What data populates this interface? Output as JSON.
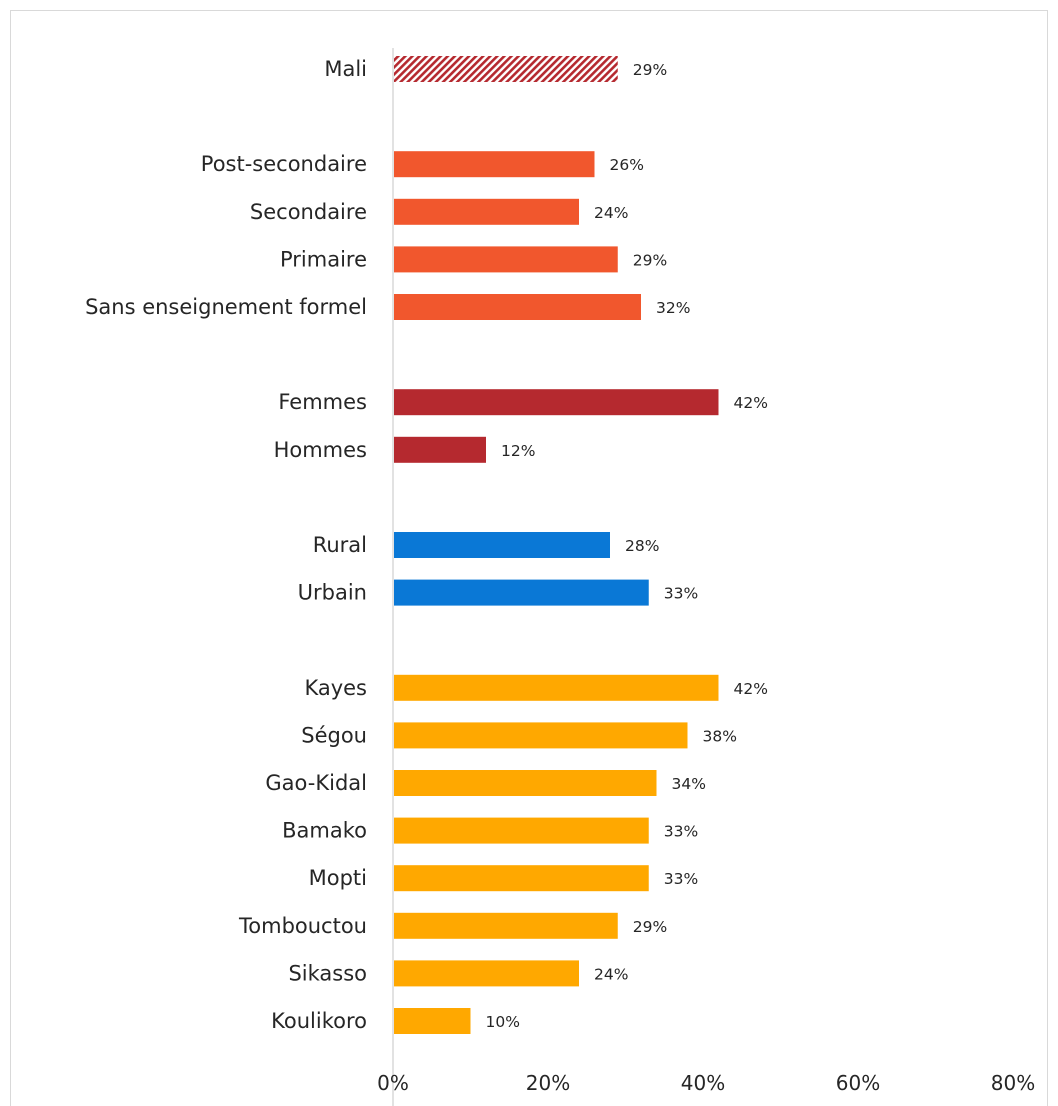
{
  "chart_data": {
    "type": "bar",
    "orientation": "horizontal",
    "title": "",
    "xlabel": "",
    "ylabel": "",
    "xlim": [
      0,
      80
    ],
    "x_ticks": [
      "0%",
      "20%",
      "40%",
      "60%",
      "80%"
    ],
    "grid": false,
    "legend": "none",
    "groups": [
      {
        "name": "total",
        "color": "#b5292f",
        "pattern": "hatch",
        "categories": [
          "Mali"
        ],
        "values": [
          29
        ],
        "labels": [
          "29%"
        ]
      },
      {
        "name": "education",
        "color": "#f1572d",
        "categories": [
          "Post-secondaire",
          "Secondaire",
          "Primaire",
          "Sans enseignement formel"
        ],
        "values": [
          26,
          24,
          29,
          32
        ],
        "labels": [
          "26%",
          "24%",
          "29%",
          "32%"
        ]
      },
      {
        "name": "gender",
        "color": "#b5292f",
        "categories": [
          "Femmes",
          "Hommes"
        ],
        "values": [
          42,
          12
        ],
        "labels": [
          "42%",
          "12%"
        ]
      },
      {
        "name": "residence",
        "color": "#0a78d6",
        "categories": [
          "Rural",
          "Urbain"
        ],
        "values": [
          28,
          33
        ],
        "labels": [
          "28%",
          "33%"
        ]
      },
      {
        "name": "region",
        "color": "#ffa800",
        "categories": [
          "Kayes",
          "Ségou",
          "Gao-Kidal",
          "Bamako",
          "Mopti",
          "Tombouctou",
          "Sikasso",
          "Koulikoro"
        ],
        "values": [
          42,
          38,
          34,
          33,
          33,
          29,
          24,
          10
        ],
        "labels": [
          "42%",
          "38%",
          "34%",
          "33%",
          "33%",
          "29%",
          "24%",
          "10%"
        ]
      }
    ]
  }
}
